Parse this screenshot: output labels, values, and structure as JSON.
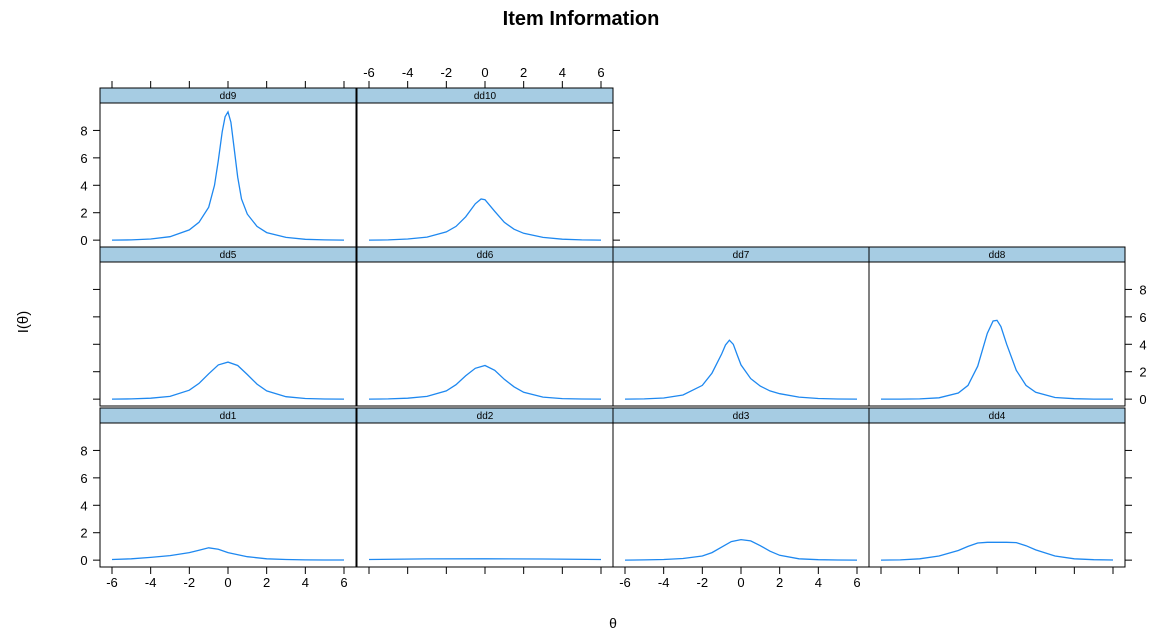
{
  "chart_data": {
    "type": "line",
    "title": "Item Information",
    "xlabel": "θ",
    "ylabel": "I(θ)",
    "xlim": [
      -6,
      6
    ],
    "ylim": [
      -0.5,
      10
    ],
    "x_ticks": [
      -6,
      -4,
      -2,
      0,
      2,
      4,
      6
    ],
    "y_ticks": [
      0,
      2,
      4,
      6,
      8
    ],
    "line_color": "#1E88F0",
    "strip_color": "#A6CCE3",
    "grid": false,
    "legend": "none",
    "panels": [
      {
        "name": "dd1",
        "x": [
          -6,
          -5,
          -4,
          -3,
          -2,
          -1.5,
          -1,
          -0.5,
          0,
          1,
          2,
          3,
          4,
          5,
          6
        ],
        "y": [
          0.05,
          0.1,
          0.2,
          0.33,
          0.55,
          0.72,
          0.9,
          0.8,
          0.55,
          0.25,
          0.1,
          0.05,
          0.02,
          0.01,
          0.01
        ]
      },
      {
        "name": "dd2",
        "x": [
          -6,
          -3,
          0,
          3,
          6
        ],
        "y": [
          0.05,
          0.09,
          0.1,
          0.08,
          0.05
        ]
      },
      {
        "name": "dd3",
        "x": [
          -6,
          -5,
          -4,
          -3,
          -2,
          -1.5,
          -1,
          -0.5,
          0,
          0.5,
          1,
          1.5,
          2,
          3,
          4,
          5,
          6
        ],
        "y": [
          0.0,
          0.02,
          0.05,
          0.12,
          0.3,
          0.55,
          0.95,
          1.35,
          1.5,
          1.4,
          1.05,
          0.65,
          0.35,
          0.1,
          0.03,
          0.01,
          0.0
        ]
      },
      {
        "name": "dd4",
        "x": [
          -6,
          -5,
          -4,
          -3,
          -2,
          -1.5,
          -1,
          -0.5,
          0,
          0.5,
          1,
          1.5,
          2,
          3,
          4,
          5,
          6
        ],
        "y": [
          0.0,
          0.02,
          0.1,
          0.3,
          0.7,
          1.0,
          1.25,
          1.3,
          1.3,
          1.3,
          1.28,
          1.05,
          0.75,
          0.3,
          0.1,
          0.03,
          0.01
        ]
      },
      {
        "name": "dd5",
        "x": [
          -6,
          -5,
          -4,
          -3,
          -2,
          -1.5,
          -1,
          -0.5,
          0,
          0.5,
          1,
          1.5,
          2,
          3,
          4,
          5,
          6
        ],
        "y": [
          0.0,
          0.02,
          0.07,
          0.2,
          0.65,
          1.15,
          1.85,
          2.5,
          2.7,
          2.45,
          1.8,
          1.1,
          0.6,
          0.18,
          0.05,
          0.01,
          0.0
        ]
      },
      {
        "name": "dd6",
        "x": [
          -6,
          -5,
          -4,
          -3,
          -2,
          -1.5,
          -1,
          -0.5,
          0,
          0.5,
          1,
          1.5,
          2,
          3,
          4,
          5,
          6
        ],
        "y": [
          0.0,
          0.02,
          0.07,
          0.2,
          0.6,
          1.05,
          1.7,
          2.25,
          2.45,
          2.1,
          1.45,
          0.9,
          0.5,
          0.15,
          0.04,
          0.01,
          0.0
        ]
      },
      {
        "name": "dd7",
        "x": [
          -6,
          -5,
          -4,
          -3,
          -2,
          -1.5,
          -1,
          -0.8,
          -0.6,
          -0.4,
          -0.2,
          0,
          0.5,
          1,
          1.5,
          2,
          3,
          4,
          5,
          6
        ],
        "y": [
          0.0,
          0.02,
          0.08,
          0.3,
          1.0,
          1.9,
          3.3,
          3.95,
          4.3,
          4.0,
          3.25,
          2.5,
          1.5,
          0.95,
          0.6,
          0.4,
          0.15,
          0.05,
          0.01,
          0.0
        ]
      },
      {
        "name": "dd8",
        "x": [
          -6,
          -5,
          -4,
          -3,
          -2,
          -1.5,
          -1,
          -0.5,
          -0.2,
          0,
          0.2,
          0.5,
          1,
          1.5,
          2,
          3,
          4,
          5,
          6
        ],
        "y": [
          0.0,
          0.0,
          0.02,
          0.1,
          0.45,
          1.0,
          2.4,
          4.8,
          5.7,
          5.75,
          5.3,
          4.0,
          2.1,
          1.0,
          0.5,
          0.12,
          0.03,
          0.0,
          0.0
        ]
      },
      {
        "name": "dd9",
        "x": [
          -6,
          -5,
          -4,
          -3,
          -2,
          -1.5,
          -1,
          -0.7,
          -0.5,
          -0.3,
          -0.15,
          0,
          0.15,
          0.3,
          0.5,
          0.7,
          1,
          1.5,
          2,
          3,
          4,
          5,
          6
        ],
        "y": [
          0.0,
          0.02,
          0.08,
          0.25,
          0.75,
          1.3,
          2.4,
          4.0,
          5.8,
          7.9,
          9.0,
          9.35,
          8.6,
          6.9,
          4.6,
          3.0,
          1.9,
          1.0,
          0.55,
          0.2,
          0.06,
          0.02,
          0.0
        ]
      },
      {
        "name": "dd10",
        "x": [
          -6,
          -5,
          -4,
          -3,
          -2,
          -1.5,
          -1,
          -0.5,
          -0.2,
          0,
          0.5,
          1,
          1.5,
          2,
          3,
          4,
          5,
          6
        ],
        "y": [
          0.0,
          0.02,
          0.08,
          0.22,
          0.6,
          1.0,
          1.7,
          2.65,
          3.0,
          2.95,
          2.1,
          1.3,
          0.8,
          0.5,
          0.2,
          0.07,
          0.02,
          0.0
        ]
      }
    ]
  }
}
